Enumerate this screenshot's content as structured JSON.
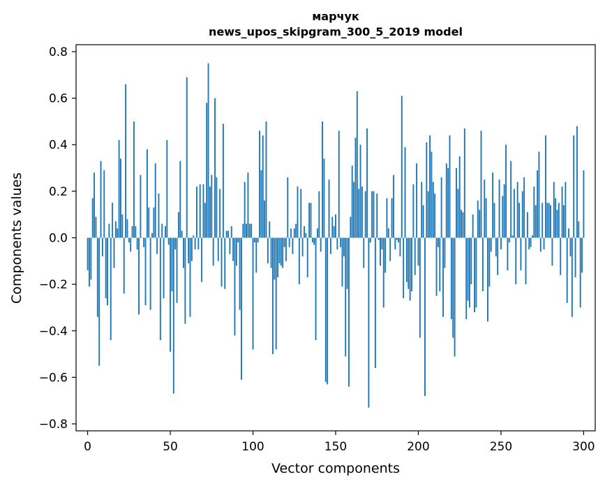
{
  "chart_data": {
    "type": "bar",
    "title": "марчук",
    "subtitle": "news_upos_skipgram_300_5_2019 model",
    "xlabel": "Vector components",
    "ylabel": "Components values",
    "xlim": [
      -7,
      307
    ],
    "ylim": [
      -0.83,
      0.83
    ],
    "xticks": [
      0,
      50,
      100,
      150,
      200,
      250,
      300
    ],
    "xtick_labels": [
      "0",
      "50",
      "100",
      "150",
      "200",
      "250",
      "300"
    ],
    "yticks": [
      0.8,
      0.6,
      0.4,
      0.2,
      0.0,
      -0.2,
      -0.4,
      -0.6,
      -0.8
    ],
    "ytick_labels": [
      "0.8",
      "0.6",
      "0.4",
      "0.2",
      "0.0",
      "−0.2",
      "−0.4",
      "−0.6",
      "−0.8"
    ],
    "grid": false,
    "bar_color": "#1f77b4",
    "values": [
      -0.14,
      -0.21,
      -0.18,
      0.17,
      0.28,
      0.09,
      -0.34,
      -0.55,
      0.33,
      -0.08,
      0.29,
      -0.26,
      -0.29,
      0.06,
      -0.44,
      0.15,
      -0.13,
      0.07,
      0.04,
      0.42,
      0.34,
      0.1,
      -0.24,
      0.66,
      0.08,
      -0.02,
      -0.06,
      0.05,
      0.5,
      0.05,
      -0.05,
      -0.33,
      0.27,
      0.0,
      -0.04,
      -0.29,
      0.38,
      0.13,
      -0.31,
      0.02,
      0.13,
      0.32,
      -0.07,
      0.19,
      -0.44,
      0.06,
      -0.26,
      0.05,
      0.42,
      -0.03,
      -0.49,
      -0.23,
      -0.67,
      -0.05,
      -0.28,
      0.11,
      0.33,
      0.03,
      -0.13,
      -0.37,
      0.69,
      -0.11,
      -0.34,
      -0.1,
      0.01,
      -0.05,
      0.22,
      -0.05,
      0.23,
      -0.19,
      0.23,
      0.15,
      0.58,
      0.75,
      0.22,
      0.27,
      -0.12,
      0.6,
      0.26,
      -0.1,
      0.21,
      -0.21,
      0.49,
      -0.22,
      0.03,
      0.03,
      -0.07,
      0.05,
      -0.1,
      -0.42,
      -0.12,
      -0.02,
      -0.31,
      -0.61,
      0.06,
      0.24,
      0.06,
      0.28,
      0.06,
      0.06,
      -0.48,
      -0.02,
      -0.15,
      -0.02,
      0.46,
      0.29,
      0.44,
      0.16,
      0.5,
      -0.11,
      0.07,
      -0.13,
      -0.5,
      -0.18,
      -0.48,
      -0.17,
      -0.11,
      -0.12,
      -0.13,
      -0.04,
      -0.1,
      0.26,
      -0.04,
      0.04,
      -0.07,
      0.04,
      0.06,
      0.22,
      -0.2,
      0.21,
      -0.08,
      0.05,
      0.02,
      -0.17,
      0.15,
      0.15,
      -0.02,
      -0.03,
      -0.44,
      0.04,
      0.2,
      -0.06,
      0.5,
      0.34,
      -0.62,
      -0.63,
      0.25,
      -0.07,
      0.09,
      0.05,
      0.1,
      -0.05,
      0.46,
      -0.04,
      -0.21,
      -0.08,
      -0.51,
      -0.22,
      -0.64,
      0.09,
      0.31,
      0.24,
      0.43,
      0.63,
      0.21,
      0.4,
      0.22,
      -0.13,
      0.2,
      0.47,
      -0.73,
      -0.02,
      0.2,
      0.2,
      -0.56,
      0.19,
      -0.01,
      -0.12,
      -0.05,
      -0.3,
      -0.15,
      0.17,
      0.04,
      -0.1,
      0.17,
      0.27,
      -0.05,
      -0.01,
      -0.02,
      -0.08,
      0.61,
      -0.26,
      0.39,
      -0.19,
      -0.22,
      -0.27,
      -0.23,
      0.23,
      -0.16,
      0.32,
      -0.12,
      -0.43,
      0.24,
      0.14,
      -0.68,
      0.41,
      0.2,
      0.44,
      0.37,
      0.24,
      0.19,
      -0.25,
      -0.04,
      -0.23,
      0.26,
      -0.34,
      -0.13,
      0.32,
      0.3,
      0.44,
      -0.35,
      -0.43,
      -0.51,
      0.3,
      0.21,
      0.35,
      0.12,
      0.11,
      0.47,
      -0.35,
      -0.27,
      -0.3,
      -0.2,
      0.1,
      -0.32,
      -0.3,
      0.16,
      0.12,
      0.46,
      -0.23,
      0.25,
      0.17,
      -0.36,
      -0.21,
      -0.06,
      0.28,
      0.15,
      -0.08,
      -0.16,
      0.25,
      -0.05,
      0.18,
      0.23,
      0.4,
      -0.14,
      -0.02,
      0.33,
      0.01,
      0.21,
      -0.2,
      0.24,
      0.15,
      -0.14,
      0.2,
      0.26,
      -0.2,
      0.11,
      -0.05,
      -0.04,
      0.01,
      0.22,
      0.14,
      0.29,
      0.37,
      -0.06,
      0.15,
      -0.05,
      0.44,
      0.15,
      0.15,
      0.14,
      -0.12,
      0.24,
      0.17,
      0.12,
      0.15,
      -0.16,
      0.22,
      0.14,
      0.24,
      -0.28,
      0.04,
      -0.08,
      -0.34,
      0.44,
      -0.17,
      0.48,
      0.07,
      -0.3,
      -0.15,
      0.29
    ]
  }
}
